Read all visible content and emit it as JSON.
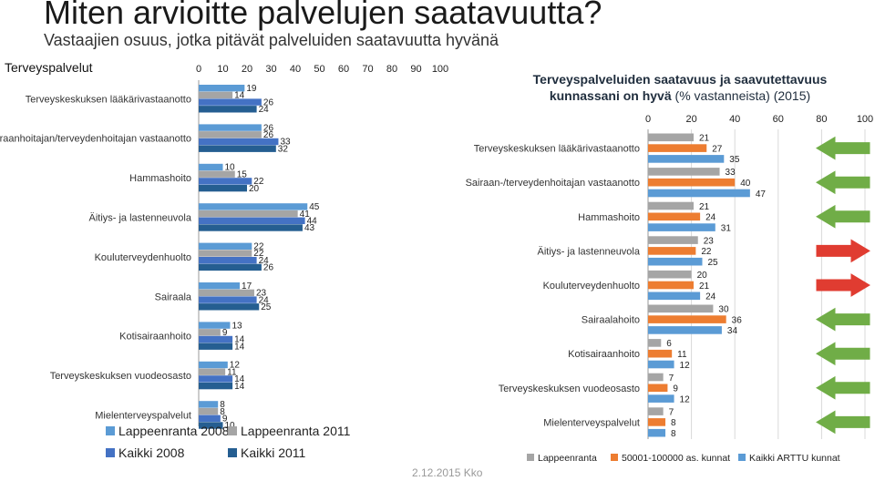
{
  "slide": {
    "title": "Miten arvioitte palvelujen saatavuutta?",
    "subtitle": "Vastaajien osuus, jotka pitävät palveluiden saatavuutta hyvänä",
    "footer": "2.12.2015 Kko"
  },
  "colors": {
    "lpr2008": "#5b9bd5",
    "lpr2011": "#a5a5a5",
    "kaikki2008": "#4472c4",
    "kaikki2011": "#255e91",
    "lappeenranta": "#a5a5a5",
    "kunnat": "#ed7d31",
    "arttu": "#5b9bd5",
    "up_arrow": "#70ad47",
    "down_arrow": "#e03c31"
  },
  "chart_data": [
    {
      "type": "bar",
      "orientation": "horizontal",
      "axis_title": "Terveyspalvelut",
      "xlim": [
        0,
        100
      ],
      "ticks": [
        0,
        10,
        20,
        30,
        40,
        50,
        60,
        70,
        80,
        90,
        100
      ],
      "categories": [
        "Terveyskeskuksen lääkärivastaanotto",
        "Sairaanhoitajan/terveydenhoitajan vastaanotto",
        "Hammashoito",
        "Äitiys- ja lastenneuvola",
        "Kouluterveydenhuolto",
        "Sairaala",
        "Kotisairaanhoito",
        "Terveyskeskuksen vuodeosasto",
        "Mielenterveyspalvelut"
      ],
      "series": [
        {
          "name": "Lappeenranta 2008",
          "color_key": "lpr2008",
          "values": [
            19,
            26,
            10,
            45,
            22,
            17,
            13,
            12,
            8
          ]
        },
        {
          "name": "Lappeenranta 2011",
          "color_key": "lpr2011",
          "values": [
            14,
            26,
            15,
            41,
            22,
            23,
            9,
            11,
            8
          ]
        },
        {
          "name": "Kaikki 2008",
          "color_key": "kaikki2008",
          "values": [
            26,
            33,
            22,
            44,
            24,
            24,
            14,
            14,
            9
          ]
        },
        {
          "name": "Kaikki  2011",
          "color_key": "kaikki2011",
          "values": [
            24,
            32,
            20,
            43,
            26,
            25,
            14,
            14,
            10
          ]
        }
      ],
      "legend_placement": "bottom"
    },
    {
      "type": "bar",
      "orientation": "horizontal",
      "title": "Terveyspalveluiden saatavuus ja saavutettavuus kunnassani on hyvä",
      "title_suffix": "(% vastanneista) (2015)",
      "xlim": [
        0,
        100
      ],
      "ticks": [
        0,
        20,
        40,
        60,
        80,
        100
      ],
      "categories": [
        "Terveyskeskuksen lääkärivastaanotto",
        "Sairaan-/terveydenhoitajan vastaanotto",
        "Hammashoito",
        "Äitiys- ja lastenneuvola",
        "Kouluterveydenhuolto",
        "Sairaalahoito",
        "Kotisairaanhoito",
        "Terveyskeskuksen vuodeosasto",
        "Mielenterveyspalvelut"
      ],
      "series": [
        {
          "name": "Lappeenranta",
          "color_key": "lappeenranta",
          "values": [
            21,
            33,
            21,
            23,
            20,
            30,
            6,
            7,
            7
          ]
        },
        {
          "name": "50001-100000 as. kunnat",
          "color_key": "kunnat",
          "values": [
            27,
            40,
            24,
            22,
            21,
            36,
            11,
            9,
            8
          ]
        },
        {
          "name": "Kaikki ARTTU kunnat",
          "color_key": "arttu",
          "values": [
            35,
            47,
            31,
            25,
            24,
            34,
            12,
            12,
            8
          ]
        }
      ],
      "trend_arrows": [
        "up",
        "up",
        "up",
        "down",
        "down",
        "up",
        "up",
        "up",
        "up"
      ],
      "legend_placement": "bottom"
    }
  ]
}
